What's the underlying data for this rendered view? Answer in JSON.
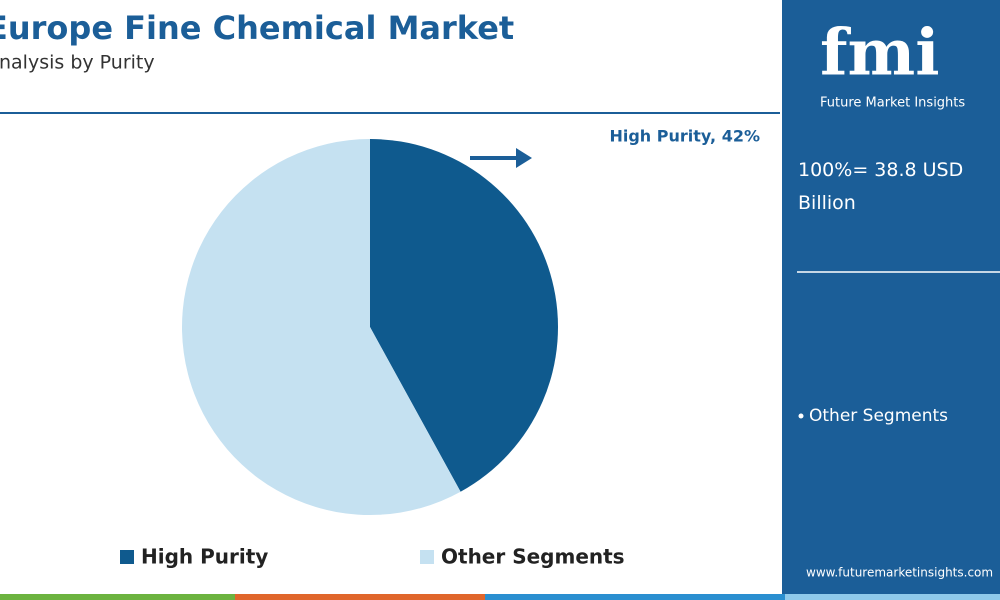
{
  "chart_data": {
    "type": "pie",
    "title": "Europe Fine Chemical Market",
    "subtitle": "Analysis by Purity",
    "categories": [
      "High Purity",
      "Other Segments"
    ],
    "values": [
      42,
      58
    ],
    "value_labels": [
      "High Purity, 42%",
      null
    ],
    "colors": [
      "#0f5a8e",
      "#c5e1f1"
    ],
    "legend": "bottom",
    "total_label": "100%= 38.8 USD Billion",
    "side_note": "Other Segments",
    "brand": {
      "logo": "fmi",
      "name": "Future Market Insights",
      "url": "www.futuremarketinsights.com"
    }
  }
}
